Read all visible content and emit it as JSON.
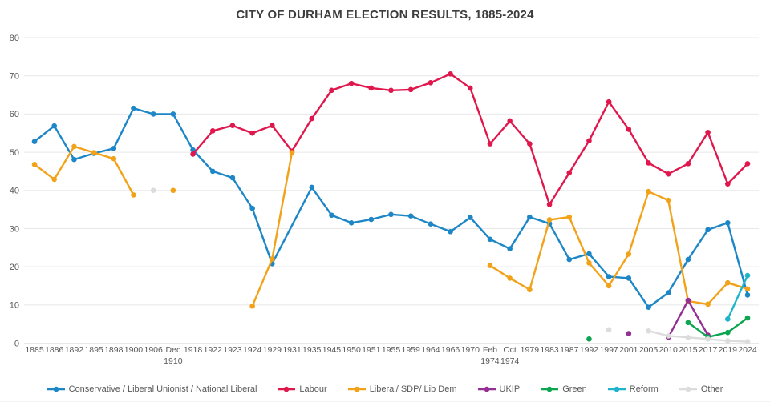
{
  "page": {
    "title": "CITY OF DURHAM ELECTION RESULTS, 1885-2024"
  },
  "colors": {
    "background": "#FFFFFF",
    "gridline": "#E8E8E8",
    "axis_text": "#595959",
    "title_text": "#3D3D3D"
  },
  "chart_data": {
    "type": "line",
    "title": "CITY OF DURHAM ELECTION RESULTS, 1885-2024",
    "xlabel": "",
    "ylabel": "",
    "grid": true,
    "legend_position": "bottom",
    "y_axis": {
      "min": 0,
      "max": 80,
      "step": 10
    },
    "categories": [
      "1885",
      "1886",
      "1892",
      "1895",
      "1898",
      "1900",
      "1906",
      "Dec\n1910",
      "1918",
      "1922",
      "1923",
      "1924",
      "1929",
      "1931",
      "1935",
      "1945",
      "1950",
      "1951",
      "1955",
      "1959",
      "1964",
      "1966",
      "1970",
      "Feb\n1974",
      "Oct\n1974",
      "1979",
      "1983",
      "1987",
      "1992",
      "1997",
      "2001",
      "2005",
      "2010",
      "2015",
      "2017",
      "2019",
      "2024"
    ],
    "series": [
      {
        "name": "Conservative / Liberal Unionist / National Liberal",
        "color": "#1C86C6",
        "connect_gaps": true,
        "values": [
          52.8,
          56.9,
          48.1,
          49.7,
          51.0,
          61.5,
          60.0,
          60.0,
          50.6,
          45.0,
          43.3,
          35.3,
          20.8,
          null,
          40.8,
          33.5,
          31.5,
          32.4,
          33.7,
          33.3,
          31.2,
          29.2,
          32.9,
          27.2,
          24.7,
          33.0,
          31.3,
          21.9,
          23.4,
          17.4,
          17.0,
          9.4,
          13.2,
          21.9,
          29.7,
          31.5,
          12.6
        ]
      },
      {
        "name": "Labour",
        "color": "#E0174C",
        "connect_gaps": false,
        "values": [
          null,
          null,
          null,
          null,
          null,
          null,
          null,
          null,
          49.5,
          55.6,
          57.0,
          55.0,
          57.0,
          50.3,
          58.8,
          66.2,
          68.0,
          66.8,
          66.2,
          66.4,
          68.2,
          70.5,
          66.8,
          52.2,
          58.2,
          52.2,
          36.3,
          44.6,
          53.0,
          63.2,
          56.0,
          47.2,
          44.3,
          47.0,
          55.2,
          41.7,
          47.0
        ]
      },
      {
        "name": "Liberal/ SDP/ Lib Dem",
        "color": "#F2A218",
        "connect_gaps": false,
        "values": [
          46.8,
          42.9,
          51.5,
          49.9,
          48.3,
          38.8,
          null,
          40.0,
          null,
          null,
          null,
          9.7,
          22.0,
          49.9,
          null,
          null,
          null,
          null,
          null,
          null,
          null,
          null,
          null,
          20.3,
          17.0,
          14.0,
          32.3,
          33.0,
          21.0,
          15.0,
          23.3,
          39.7,
          37.4,
          11.0,
          10.2,
          15.8,
          14.2
        ]
      },
      {
        "name": "UKIP",
        "color": "#942F93",
        "connect_gaps": false,
        "values": [
          null,
          null,
          null,
          null,
          null,
          null,
          null,
          null,
          null,
          null,
          null,
          null,
          null,
          null,
          null,
          null,
          null,
          null,
          null,
          null,
          null,
          null,
          null,
          null,
          null,
          null,
          null,
          null,
          null,
          null,
          2.5,
          null,
          1.5,
          11.2,
          2.1,
          null,
          null
        ]
      },
      {
        "name": "Green",
        "color": "#0EA551",
        "connect_gaps": false,
        "values": [
          null,
          null,
          null,
          null,
          null,
          null,
          null,
          null,
          null,
          null,
          null,
          null,
          null,
          null,
          null,
          null,
          null,
          null,
          null,
          null,
          null,
          null,
          null,
          null,
          null,
          null,
          null,
          null,
          1.1,
          null,
          null,
          null,
          null,
          5.4,
          1.6,
          2.8,
          6.6
        ]
      },
      {
        "name": "Reform",
        "color": "#1FB4CC",
        "connect_gaps": false,
        "values": [
          null,
          null,
          null,
          null,
          null,
          null,
          null,
          null,
          null,
          null,
          null,
          null,
          null,
          null,
          null,
          null,
          null,
          null,
          null,
          null,
          null,
          null,
          null,
          null,
          null,
          null,
          null,
          null,
          null,
          null,
          null,
          null,
          null,
          null,
          null,
          6.3,
          17.7
        ]
      },
      {
        "name": "Other",
        "color": "#DCDCDC",
        "connect_gaps": false,
        "values": [
          null,
          null,
          null,
          null,
          null,
          null,
          40.0,
          null,
          null,
          null,
          null,
          null,
          null,
          null,
          null,
          null,
          null,
          null,
          null,
          null,
          null,
          null,
          null,
          null,
          null,
          null,
          null,
          null,
          null,
          3.5,
          null,
          3.2,
          1.9,
          1.5,
          1.1,
          0.6,
          0.4
        ]
      }
    ]
  }
}
